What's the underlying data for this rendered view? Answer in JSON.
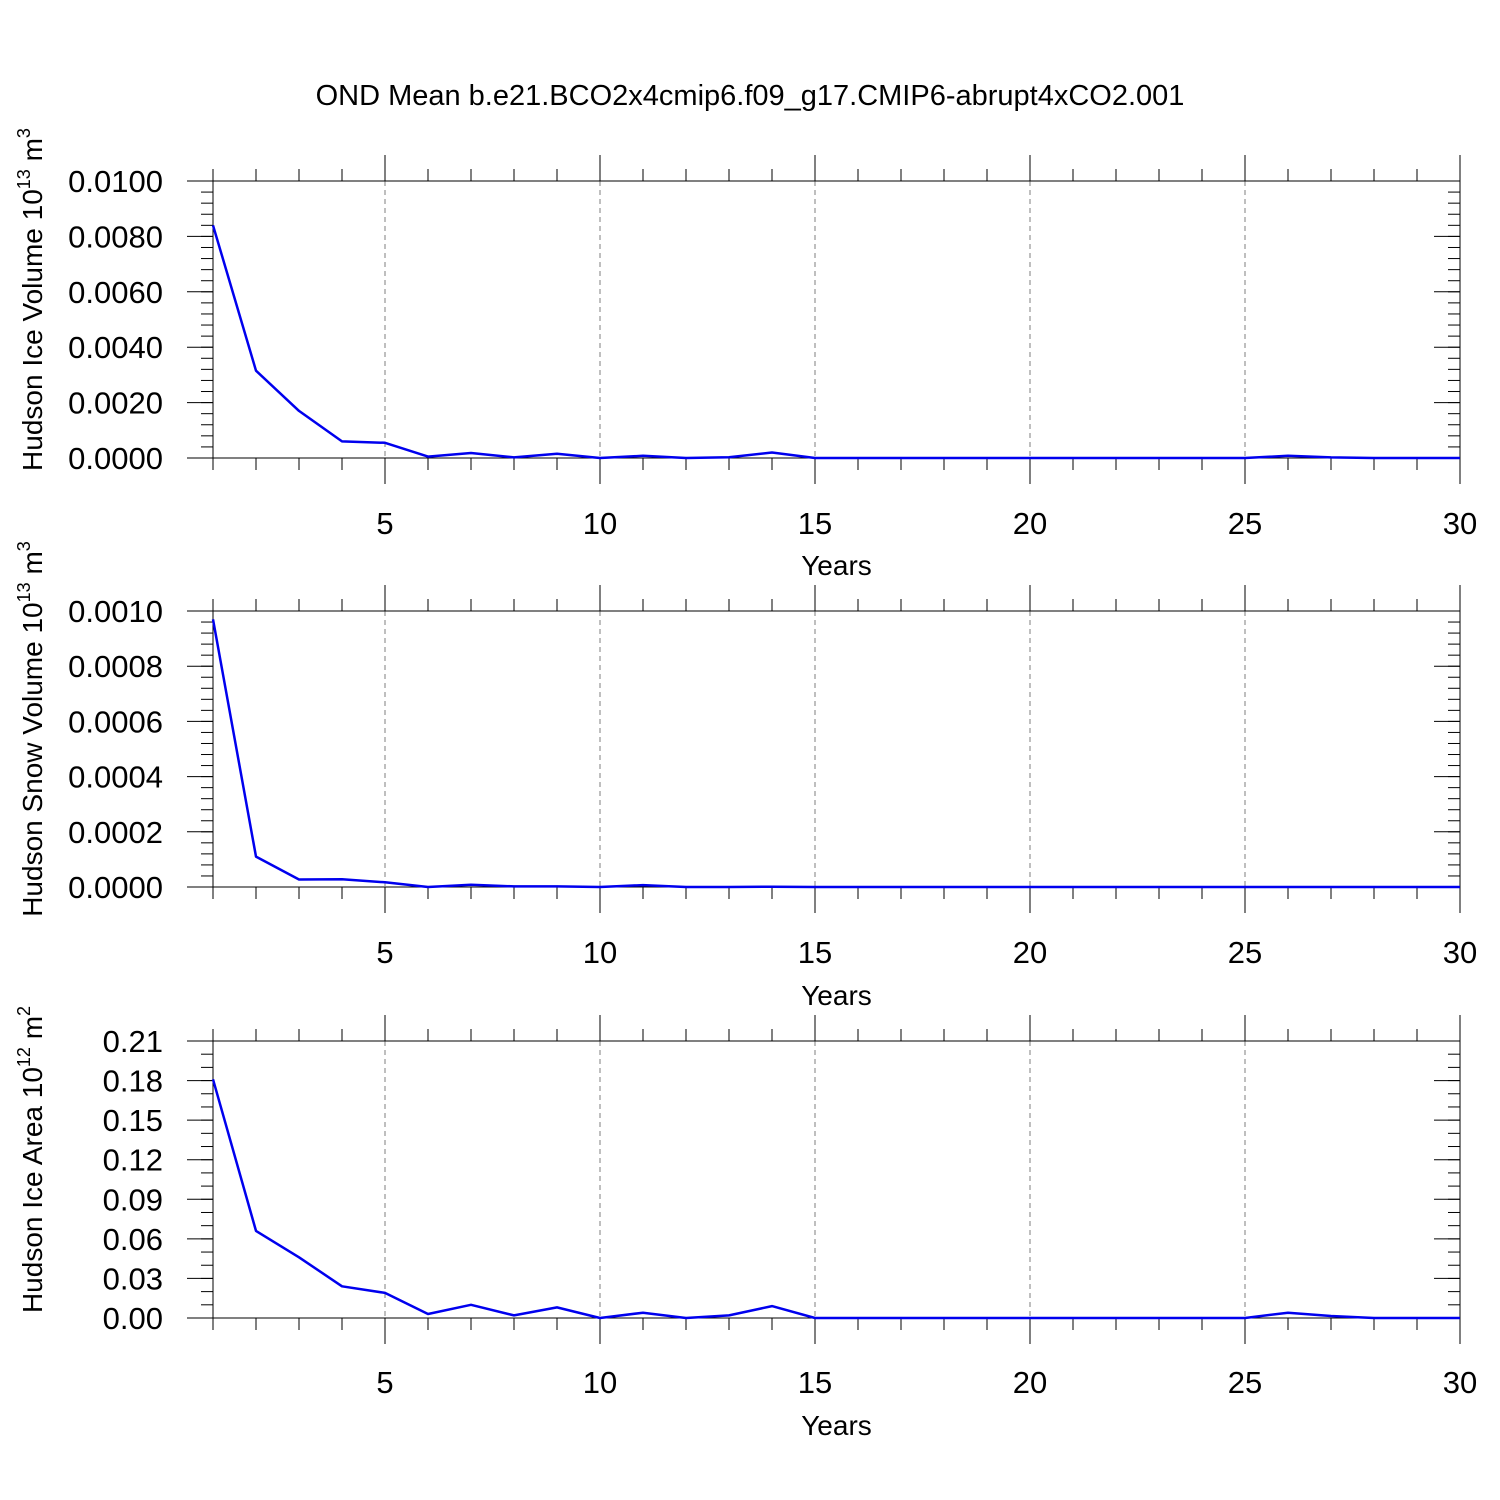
{
  "title": "OND Mean b.e21.BCO2x4cmip6.f09_g17.CMIP6-abrupt4xCO2.001",
  "colors": {
    "line": "#0000ee",
    "axis": "#000000",
    "grid": "#7f7f7f"
  },
  "chart_data": [
    {
      "type": "line",
      "title": "",
      "xlabel": "Years",
      "ylabel": {
        "text": "Hudson Ice Volume 10",
        "sup": "13",
        "unit": " m",
        "unit_sup": "3"
      },
      "xlim": [
        1,
        30
      ],
      "ylim": [
        0,
        0.01
      ],
      "x_ticks": [
        5,
        10,
        15,
        20,
        25,
        30
      ],
      "x_tick_labels": [
        "5",
        "10",
        "15",
        "20",
        "25",
        "30"
      ],
      "y_ticks": [
        0,
        0.002,
        0.004,
        0.006,
        0.008,
        0.01
      ],
      "y_tick_labels": [
        "0.0000",
        "0.0020",
        "0.0040",
        "0.0060",
        "0.0080",
        "0.0100"
      ],
      "y_minor_step": 0.0004,
      "grid": "vertical dashed at major x ticks",
      "x": [
        1,
        2,
        3,
        4,
        5,
        6,
        7,
        8,
        9,
        10,
        11,
        12,
        13,
        14,
        15,
        16,
        17,
        18,
        19,
        20,
        21,
        22,
        23,
        24,
        25,
        26,
        27,
        28,
        29,
        30
      ],
      "series": [
        {
          "values": [
            0.0084,
            0.00315,
            0.0017,
            0.0006,
            0.00055,
            5e-05,
            0.00018,
            2e-05,
            0.00015,
            0.0,
            8e-05,
            0.0,
            3e-05,
            0.0002,
            0.0,
            0.0,
            0.0,
            0.0,
            0.0,
            0.0,
            0.0,
            0.0,
            0.0,
            0.0,
            0.0,
            8e-05,
            2e-05,
            0.0,
            0.0,
            0.0
          ]
        }
      ]
    },
    {
      "type": "line",
      "title": "",
      "xlabel": "Years",
      "ylabel": {
        "text": "Hudson Snow Volume 10",
        "sup": "13",
        "unit": " m",
        "unit_sup": "3"
      },
      "xlim": [
        1,
        30
      ],
      "ylim": [
        0,
        0.001
      ],
      "x_ticks": [
        5,
        10,
        15,
        20,
        25,
        30
      ],
      "x_tick_labels": [
        "5",
        "10",
        "15",
        "20",
        "25",
        "30"
      ],
      "y_ticks": [
        0,
        0.0002,
        0.0004,
        0.0006,
        0.0008,
        0.001
      ],
      "y_tick_labels": [
        "0.0000",
        "0.0002",
        "0.0004",
        "0.0006",
        "0.0008",
        "0.0010"
      ],
      "y_minor_step": 4e-05,
      "grid": "vertical dashed at major x ticks",
      "x": [
        1,
        2,
        3,
        4,
        5,
        6,
        7,
        8,
        9,
        10,
        11,
        12,
        13,
        14,
        15,
        16,
        17,
        18,
        19,
        20,
        21,
        22,
        23,
        24,
        25,
        26,
        27,
        28,
        29,
        30
      ],
      "series": [
        {
          "values": [
            0.00097,
            0.00011,
            2.7e-05,
            2.8e-05,
            1.7e-05,
            0.0,
            8e-06,
            2e-06,
            2e-06,
            0.0,
            7e-06,
            0.0,
            0.0,
            1e-06,
            0.0,
            0.0,
            0.0,
            0.0,
            0.0,
            0.0,
            0.0,
            0.0,
            0.0,
            0.0,
            0.0,
            0.0,
            0.0,
            0.0,
            0.0,
            0.0
          ]
        }
      ]
    },
    {
      "type": "line",
      "title": "",
      "xlabel": "Years",
      "ylabel": {
        "text": "Hudson Ice Area 10",
        "sup": "12",
        "unit": " m",
        "unit_sup": "2"
      },
      "xlim": [
        1,
        30
      ],
      "ylim": [
        0,
        0.21
      ],
      "x_ticks": [
        5,
        10,
        15,
        20,
        25,
        30
      ],
      "x_tick_labels": [
        "5",
        "10",
        "15",
        "20",
        "25",
        "30"
      ],
      "y_ticks": [
        0,
        0.03,
        0.06,
        0.09,
        0.12,
        0.15,
        0.18,
        0.21
      ],
      "y_tick_labels": [
        "0.00",
        "0.03",
        "0.06",
        "0.09",
        "0.12",
        "0.15",
        "0.18",
        "0.21"
      ],
      "y_minor_step": 0.01,
      "grid": "vertical dashed at major x ticks",
      "x": [
        1,
        2,
        3,
        4,
        5,
        6,
        7,
        8,
        9,
        10,
        11,
        12,
        13,
        14,
        15,
        16,
        17,
        18,
        19,
        20,
        21,
        22,
        23,
        24,
        25,
        26,
        27,
        28,
        29,
        30
      ],
      "series": [
        {
          "values": [
            0.181,
            0.066,
            0.046,
            0.024,
            0.019,
            0.003,
            0.01,
            0.002,
            0.008,
            0.0,
            0.004,
            0.0,
            0.002,
            0.009,
            0.0,
            0.0,
            0.0,
            0.0,
            0.0,
            0.0,
            0.0,
            0.0,
            0.0,
            0.0,
            0.0,
            0.004,
            0.0015,
            0.0,
            0.0,
            0.0
          ]
        }
      ]
    }
  ]
}
